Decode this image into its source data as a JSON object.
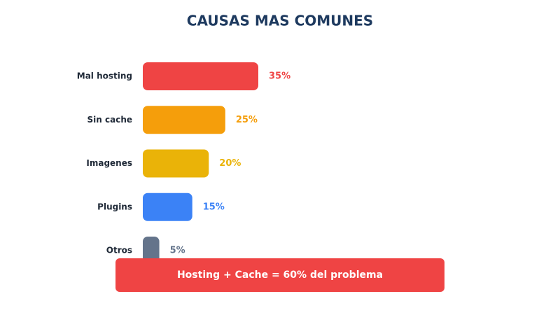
{
  "chart_data": {
    "type": "bar",
    "orientation": "horizontal",
    "title": "CAUSAS MAS COMUNES",
    "categories": [
      "Mal hosting",
      "Sin cache",
      "Imagenes",
      "Plugins",
      "Otros"
    ],
    "values": [
      35,
      25,
      20,
      15,
      5
    ],
    "value_labels": [
      "35%",
      "25%",
      "20%",
      "15%",
      "5%"
    ],
    "colors": [
      "#ef4444",
      "#f59e0b",
      "#eab308",
      "#3b82f6",
      "#64748b"
    ],
    "annotation": "Hosting + Cache = 60% del problema"
  }
}
